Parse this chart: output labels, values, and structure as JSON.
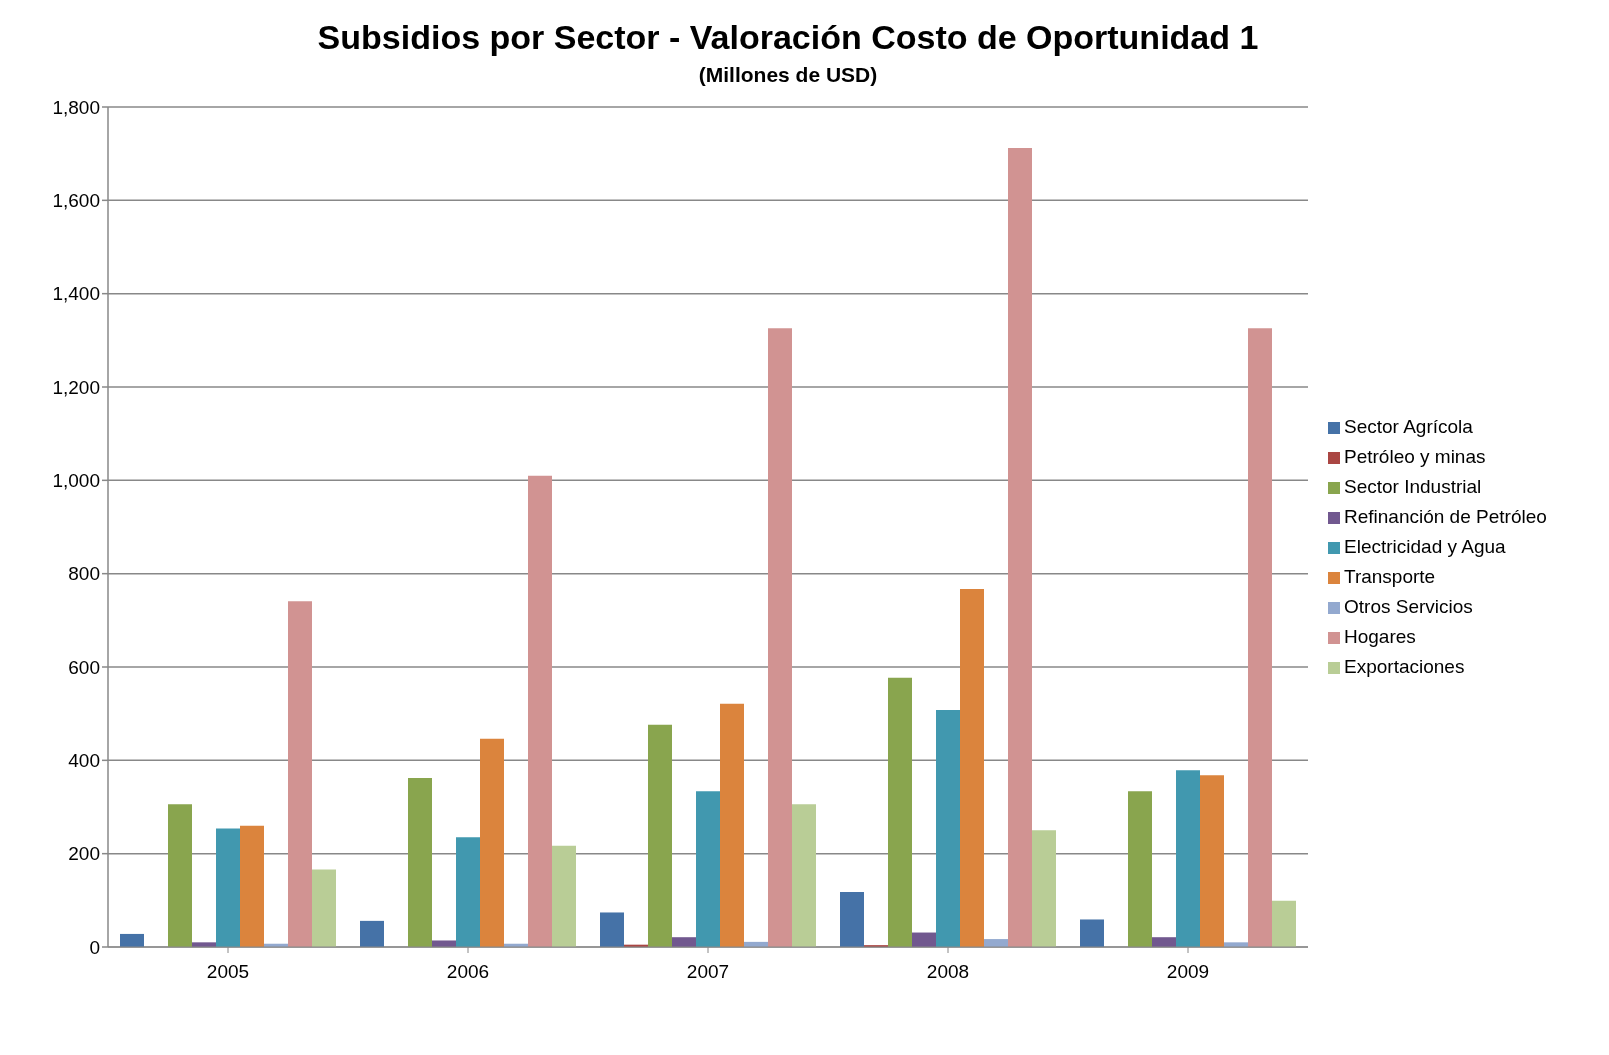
{
  "chart_data": {
    "type": "bar",
    "title": "Subsidios por Sector - Valoración Costo de Oportunidad 1",
    "subtitle": "(Millones de USD)",
    "categories": [
      "2005",
      "2006",
      "2007",
      "2008",
      "2009"
    ],
    "series": [
      {
        "name": "Sector Agrícola",
        "color": "#4572a7",
        "values": [
          28,
          56,
          74,
          118,
          59
        ]
      },
      {
        "name": "Petróleo y minas",
        "color": "#aa4643",
        "values": [
          null,
          null,
          5,
          4,
          null
        ]
      },
      {
        "name": "Sector Industrial",
        "color": "#89a54e",
        "values": [
          306,
          362,
          476,
          577,
          334
        ]
      },
      {
        "name": "Refinanción de Petróleo",
        "color": "#71588f",
        "values": [
          10,
          14,
          21,
          31,
          21
        ]
      },
      {
        "name": "Electricidad y Agua",
        "color": "#4198af",
        "values": [
          254,
          235,
          334,
          508,
          379
        ]
      },
      {
        "name": "Transporte",
        "color": "#db843d",
        "values": [
          260,
          446,
          521,
          767,
          368
        ]
      },
      {
        "name": "Otros Servicios",
        "color": "#93a9cf",
        "values": [
          7,
          7,
          11,
          17,
          10
        ]
      },
      {
        "name": "Hogares",
        "color": "#d19392",
        "values": [
          741,
          1010,
          1326,
          1712,
          1326
        ]
      },
      {
        "name": "Exportaciones",
        "color": "#b9cd96",
        "values": [
          166,
          217,
          306,
          250,
          99
        ]
      }
    ],
    "ylim": [
      0,
      1800
    ],
    "yticks": [
      0,
      200,
      400,
      600,
      800,
      {
        "value": 1000,
        "label": "1,000"
      },
      {
        "value": 1200,
        "label": "1,200"
      },
      {
        "value": 1400,
        "label": "1,400"
      },
      {
        "value": 1600,
        "label": "1,600"
      },
      {
        "value": 1800,
        "label": "1,800"
      }
    ],
    "grid": "y",
    "legend": "right"
  }
}
